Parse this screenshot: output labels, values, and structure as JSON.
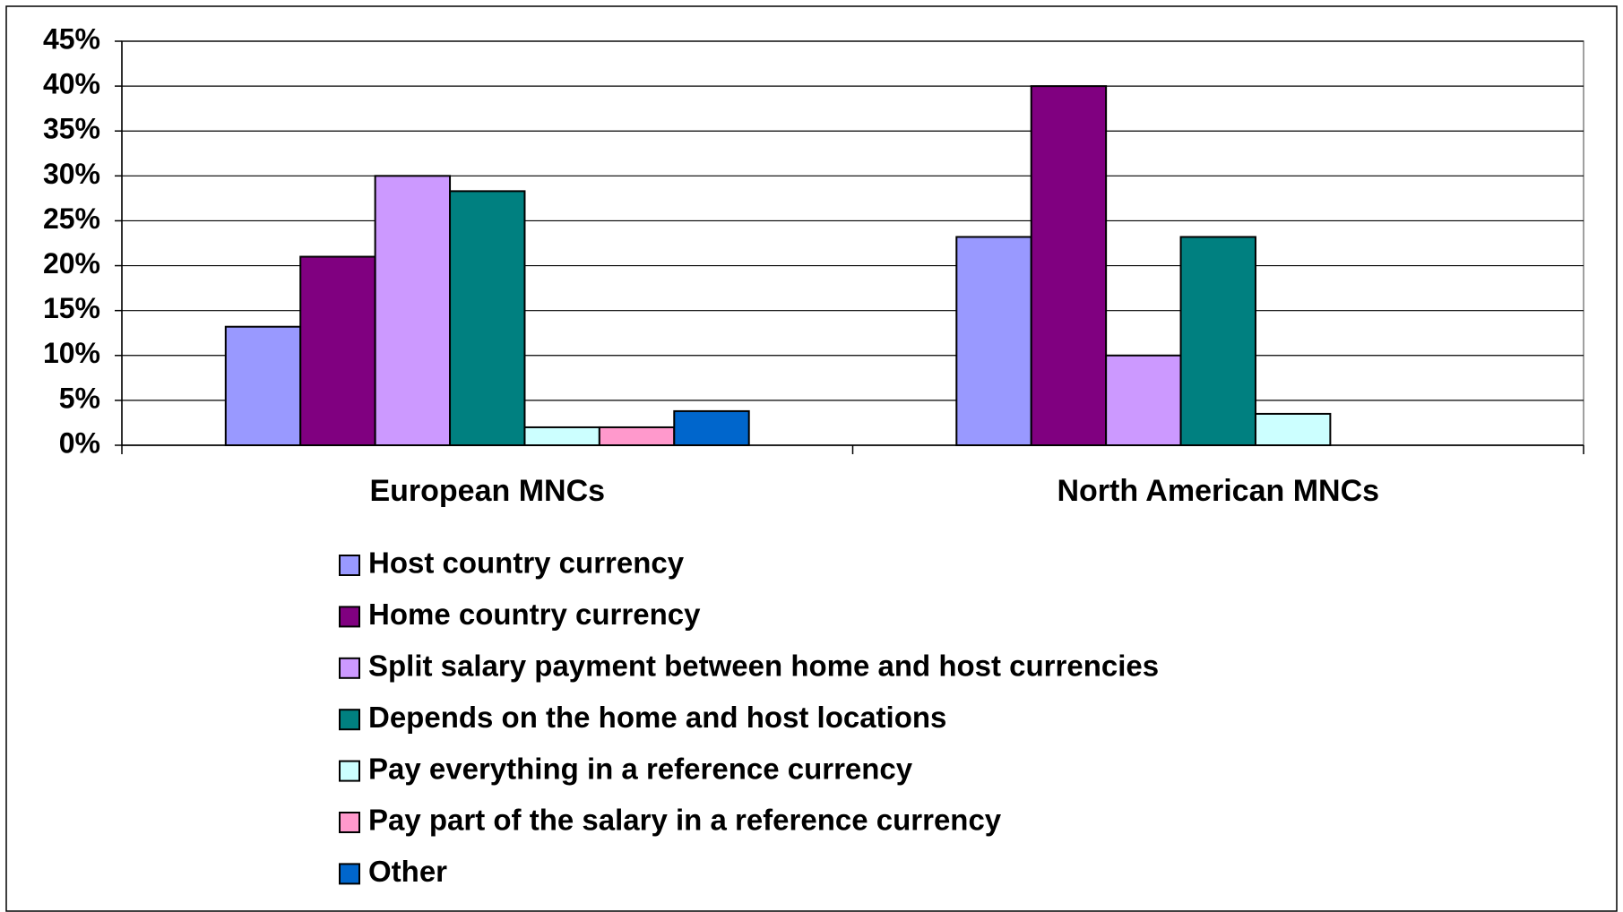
{
  "chart_data": {
    "type": "bar",
    "categories": [
      "European MNCs",
      "North American MNCs"
    ],
    "series": [
      {
        "name": "Host country currency",
        "color": "#9999ff",
        "values": [
          13.2,
          23.2
        ]
      },
      {
        "name": "Home country currency",
        "color": "#800080",
        "values": [
          21,
          40
        ]
      },
      {
        "name": "Split salary payment between home and host currencies",
        "color": "#cc99ff",
        "values": [
          30,
          10
        ]
      },
      {
        "name": "Depends on the home and host locations",
        "color": "#008080",
        "values": [
          28.3,
          23.2
        ]
      },
      {
        "name": "Pay everything in a reference currency",
        "color": "#ccffff",
        "values": [
          2,
          3.5
        ]
      },
      {
        "name": "Pay part of the salary in a reference currency",
        "color": "#ff99cc",
        "values": [
          2,
          0
        ]
      },
      {
        "name": "Other",
        "color": "#0066cc",
        "values": [
          3.8,
          0
        ]
      }
    ],
    "ylim": [
      0,
      45
    ],
    "yticks": [
      {
        "value": 0,
        "label": "0%"
      },
      {
        "value": 5,
        "label": "5%"
      },
      {
        "value": 10,
        "label": "10%"
      },
      {
        "value": 15,
        "label": "15%"
      },
      {
        "value": 20,
        "label": "20%"
      },
      {
        "value": 25,
        "label": "25%"
      },
      {
        "value": 30,
        "label": "30%"
      },
      {
        "value": 35,
        "label": "35%"
      },
      {
        "value": 40,
        "label": "40%"
      },
      {
        "value": 45,
        "label": "45%"
      }
    ],
    "grid": true,
    "legend": "bottom"
  }
}
